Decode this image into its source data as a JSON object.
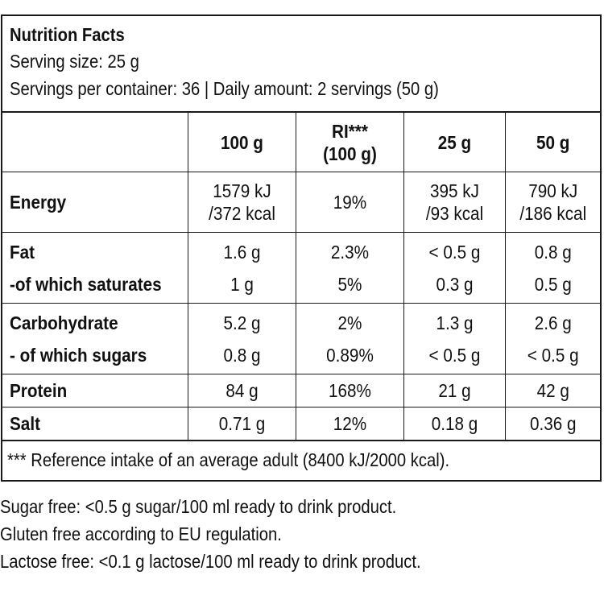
{
  "header": {
    "title": "Nutrition Facts",
    "serving_size": "Serving size: 25 g",
    "servings_line": "Servings per container: 36 | Daily amount: 2 servings (50 g)"
  },
  "table": {
    "columns": [
      "",
      "100 g",
      "RI***",
      "(100 g)",
      "25 g",
      "50 g"
    ],
    "rows": {
      "energy": {
        "label": "Energy",
        "c1a": "1579 kJ",
        "c1b": "/372 kcal",
        "ri": "19%",
        "c3a": "395 kJ",
        "c3b": "/93 kcal",
        "c4a": "790 kJ",
        "c4b": "/186 kcal"
      },
      "fat": {
        "label": "Fat",
        "c1": "1.6 g",
        "ri": "2.3%",
        "c3": "< 0.5 g",
        "c4": "0.8 g"
      },
      "saturates": {
        "label": "-of which saturates",
        "c1": "1 g",
        "ri": "5%",
        "c3": "0.3 g",
        "c4": "0.5 g"
      },
      "carbohydrate": {
        "label": "Carbohydrate",
        "c1": "5.2 g",
        "ri": "2%",
        "c3": "1.3 g",
        "c4": "2.6 g"
      },
      "sugars": {
        "label": "- of which sugars",
        "c1": "0.8 g",
        "ri": "0.89%",
        "c3": "< 0.5 g",
        "c4": "< 0.5 g"
      },
      "protein": {
        "label": "Protein",
        "c1": "84 g",
        "ri": "168%",
        "c3": "21 g",
        "c4": "42 g"
      },
      "salt": {
        "label": "Salt",
        "c1": "0.71 g",
        "ri": "12%",
        "c3": "0.18 g",
        "c4": "0.36 g"
      }
    }
  },
  "footnote": "*** Reference intake of an average adult (8400 kJ/2000 kcal).",
  "notes": [
    "Sugar free: <0.5 g sugar/100 ml ready to drink product.",
    "Gluten free according to EU regulation.",
    "Lactose free: <0.1 g lactose/100 ml ready to drink product."
  ]
}
